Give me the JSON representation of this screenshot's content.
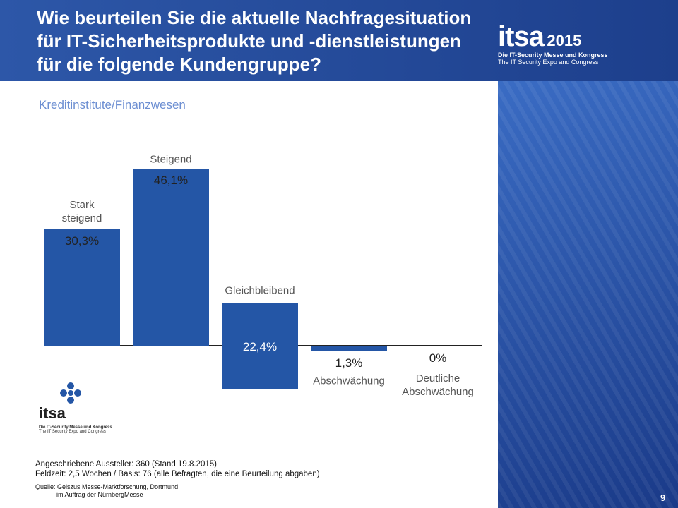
{
  "header": {
    "title_lines": [
      "Wie beurteilen Sie die aktuelle Nachfragesituation",
      "für IT-Sicherheitsprodukte und -dienstleistungen",
      "für die folgende Kundengruppe?"
    ],
    "logo": {
      "brand": "itsa",
      "year": "2015",
      "line1": "Die IT-Security Messe und Kongress",
      "line2": "The IT Security Expo and Congress"
    }
  },
  "chart_data": {
    "type": "bar",
    "subtitle": "Kreditinstitute/Finanzwesen",
    "categories": [
      "Stark steigend",
      "Steigend",
      "Gleichbleibend",
      "Abschwächung",
      "Deutliche Abschwächung"
    ],
    "values": [
      30.3,
      46.1,
      22.4,
      1.3,
      0
    ],
    "value_labels": [
      "30,3%",
      "46,1%",
      "22,4%",
      "1,3%",
      "0%"
    ],
    "color": "#2456a6"
  },
  "footer": {
    "notes": [
      "Angeschriebene Aussteller: 360 (Stand 19.8.2015)",
      "Feldzeit: 2,5 Wochen / Basis: 76 (alle Befragten, die eine Beurteilung abgaben)"
    ],
    "source": [
      "Quelle: Gelszus Messe-Marktforschung, Dortmund",
      "im Auftrag der NürnbergMesse"
    ],
    "page": "9"
  }
}
